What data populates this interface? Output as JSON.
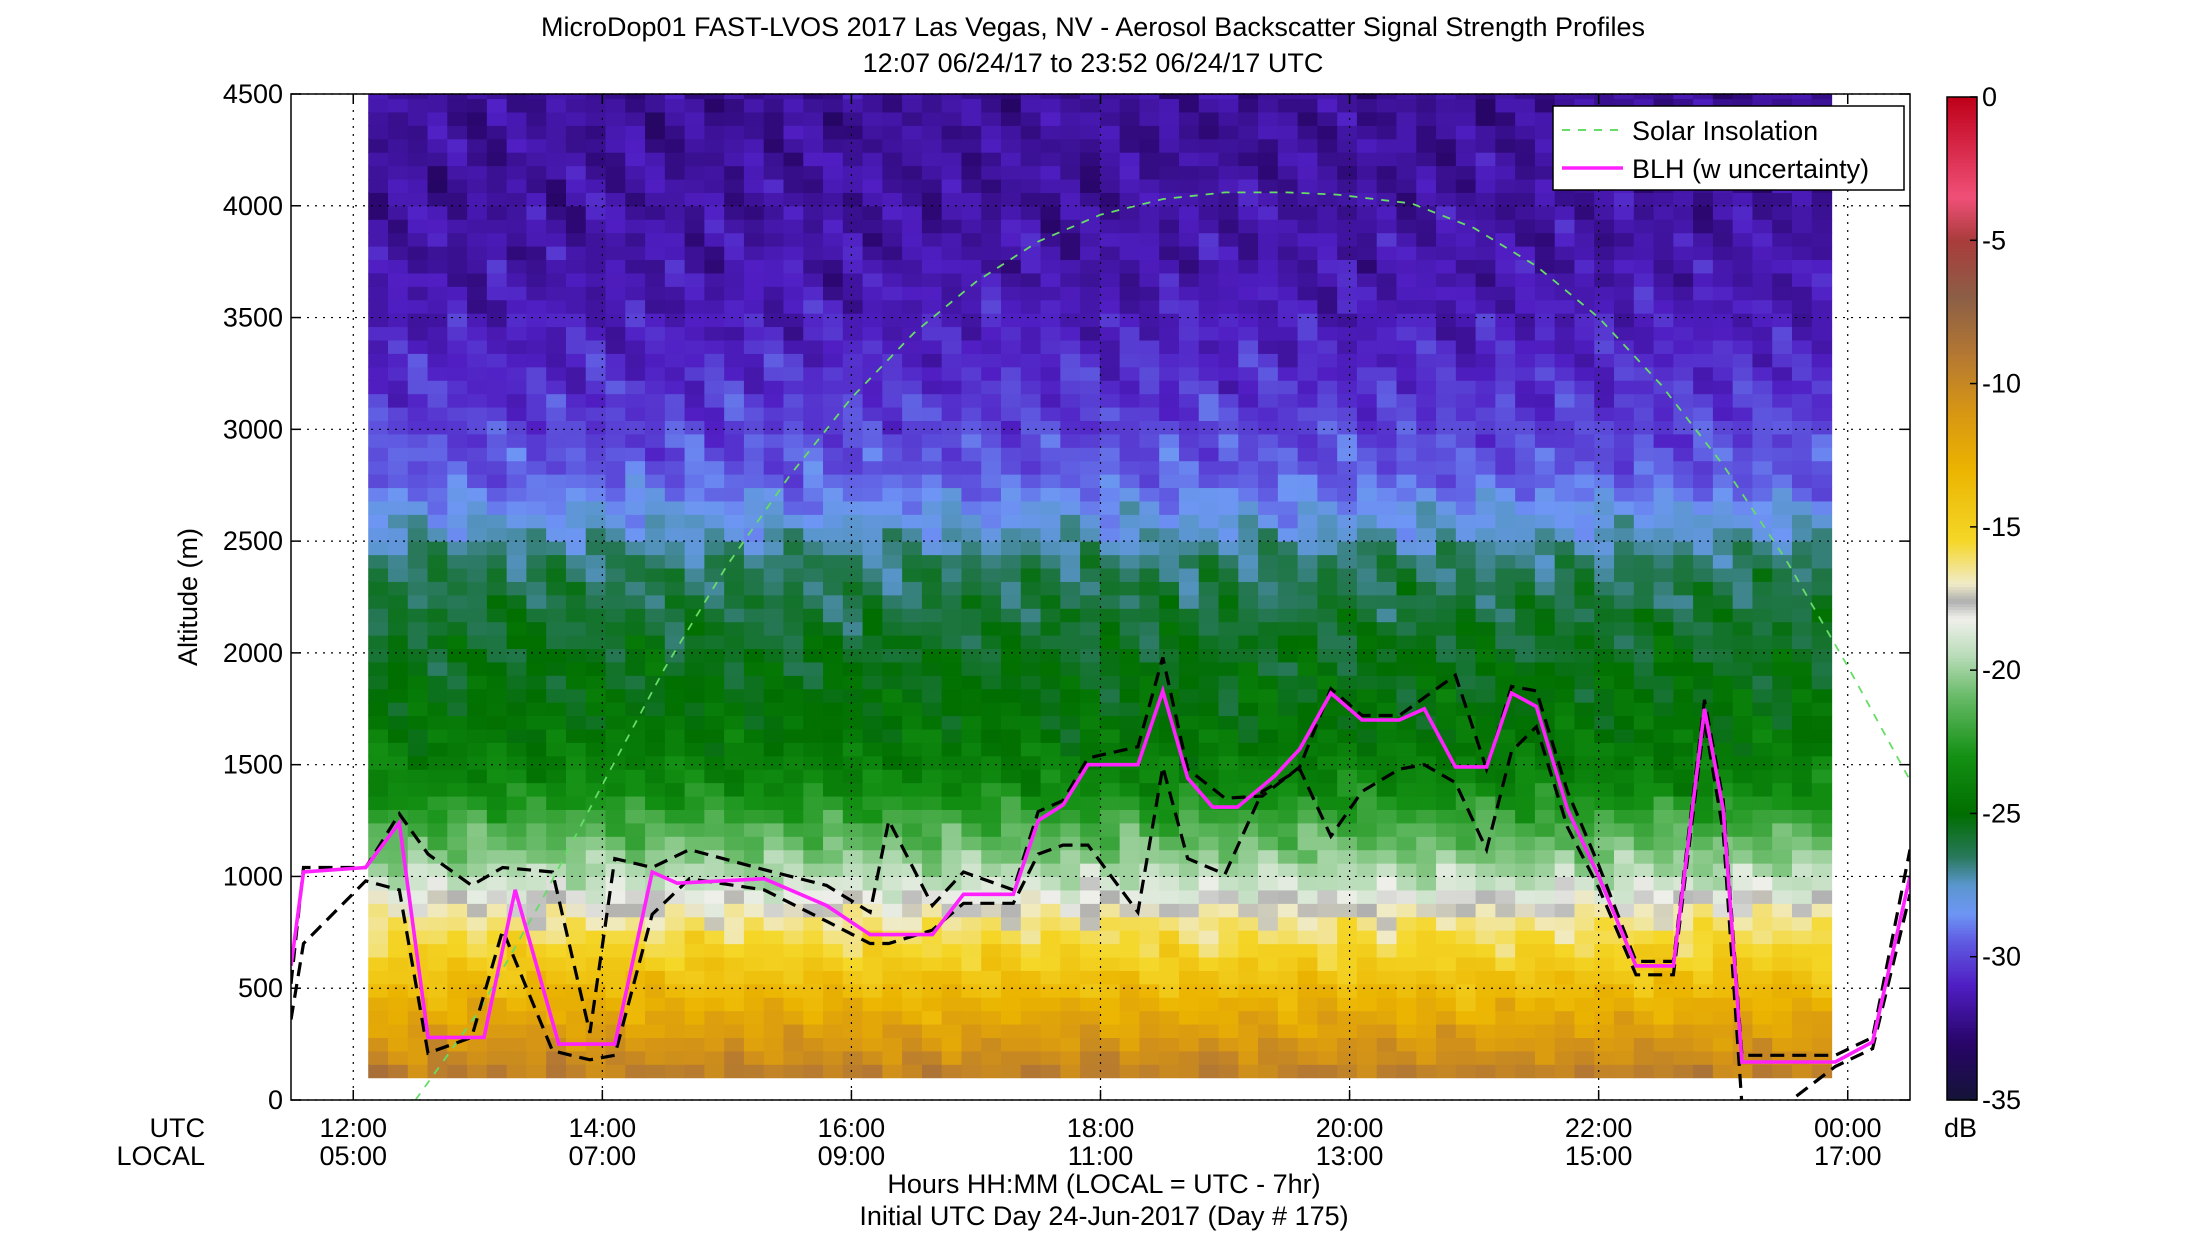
{
  "chart_data": {
    "type": "heatmap",
    "title": "MicroDop01 FAST-LVOS 2017 Las Vegas, NV - Aerosol Backscatter Signal Strength Profiles",
    "subtitle": "12:07 06/24/17 to 23:52 06/24/17  UTC",
    "ylabel": "Altitude (m)",
    "xlabel": "Hours HH:MM  (LOCAL = UTC - 7hr)",
    "xlabel2": "Initial UTC Day 24-Jun-2017 (Day # 175)",
    "row_label_utc": "UTC",
    "row_label_local": "LOCAL",
    "xlim_hours": [
      11.5,
      24.5
    ],
    "ylim": [
      0,
      4500
    ],
    "grid": true,
    "x_ticks": [
      {
        "hour": 12,
        "utc": "12:00",
        "local": "05:00"
      },
      {
        "hour": 14,
        "utc": "14:00",
        "local": "07:00"
      },
      {
        "hour": 16,
        "utc": "16:00",
        "local": "09:00"
      },
      {
        "hour": 18,
        "utc": "18:00",
        "local": "11:00"
      },
      {
        "hour": 20,
        "utc": "20:00",
        "local": "13:00"
      },
      {
        "hour": 22,
        "utc": "22:00",
        "local": "15:00"
      },
      {
        "hour": 24,
        "utc": "00:00",
        "local": "17:00"
      }
    ],
    "y_ticks": [
      0,
      500,
      1000,
      1500,
      2000,
      2500,
      3000,
      3500,
      4000,
      4500
    ],
    "colorbar": {
      "label": "dB",
      "range": [
        -35,
        0
      ],
      "ticks": [
        0,
        -5,
        -10,
        -15,
        -20,
        -25,
        -30,
        -35
      ]
    },
    "legend": {
      "placement": "top-right",
      "entries": [
        {
          "label": "Solar Insolation",
          "color": "#66dd66",
          "style": "dashed"
        },
        {
          "label": "BLH (w uncertainty)",
          "color": "#ff22ff",
          "style": "solid"
        }
      ]
    },
    "data_time_range_hours": [
      12.12,
      23.87
    ],
    "signal_profile_db": {
      "altitude_m": [
        120,
        200,
        300,
        400,
        500,
        600,
        700,
        800,
        900,
        1000,
        1100,
        1200,
        1300,
        1400,
        1600,
        1800,
        2000,
        2200,
        2400,
        2600,
        2800,
        3000,
        3200,
        3400,
        3700,
        4000,
        4500
      ],
      "signal_db": [
        -9.5,
        -10.5,
        -11.5,
        -12.5,
        -13.5,
        -14.5,
        -15.5,
        -16.5,
        -18,
        -19.5,
        -20.5,
        -21.5,
        -22.5,
        -23.5,
        -24.5,
        -25,
        -25.5,
        -26,
        -26.5,
        -28,
        -29.5,
        -30,
        -30.5,
        -31,
        -31.5,
        -31.8,
        -32
      ]
    },
    "series": [
      {
        "name": "BLH (w uncertainty)",
        "x": [
          11.5,
          11.6,
          12.1,
          12.37,
          12.6,
          13.05,
          13.3,
          13.65,
          14.1,
          14.4,
          14.6,
          15.3,
          15.8,
          16.15,
          16.65,
          16.9,
          17.3,
          17.5,
          17.7,
          17.9,
          18.3,
          18.5,
          18.7,
          18.9,
          19.1,
          19.4,
          19.6,
          19.85,
          20.1,
          20.4,
          20.6,
          20.85,
          21.1,
          21.3,
          21.5,
          21.75,
          22.0,
          22.3,
          22.6,
          22.85,
          23.0,
          23.15,
          23.5,
          23.9,
          24.2,
          24.5
        ],
        "y": [
          600,
          1020,
          1040,
          1240,
          280,
          280,
          940,
          250,
          250,
          1020,
          970,
          990,
          870,
          740,
          740,
          920,
          920,
          1250,
          1320,
          1500,
          1500,
          1830,
          1440,
          1310,
          1310,
          1450,
          1570,
          1820,
          1700,
          1700,
          1750,
          1490,
          1490,
          1820,
          1760,
          1300,
          1000,
          600,
          600,
          1750,
          1300,
          170,
          170,
          170,
          260,
          1000
        ]
      },
      {
        "name": "BLH upper uncertainty",
        "x": [
          11.5,
          11.6,
          12.1,
          12.37,
          12.6,
          12.95,
          13.2,
          13.6,
          13.9,
          14.1,
          14.4,
          14.7,
          15.3,
          15.8,
          16.15,
          16.3,
          16.65,
          16.9,
          17.3,
          17.5,
          17.7,
          17.9,
          18.3,
          18.5,
          18.7,
          19.0,
          19.3,
          19.6,
          19.85,
          20.1,
          20.4,
          20.6,
          20.85,
          21.1,
          21.3,
          21.5,
          21.75,
          22.0,
          22.3,
          22.6,
          22.85,
          23.0,
          23.15,
          23.5,
          23.9,
          24.2,
          24.5
        ],
        "y": [
          520,
          1040,
          1040,
          1280,
          1100,
          960,
          1040,
          1020,
          300,
          1080,
          1040,
          1120,
          1030,
          960,
          840,
          1250,
          870,
          1020,
          940,
          1290,
          1340,
          1530,
          1580,
          1980,
          1480,
          1350,
          1360,
          1490,
          1840,
          1720,
          1720,
          1800,
          1900,
          1480,
          1850,
          1830,
          1380,
          1050,
          620,
          620,
          1790,
          1340,
          200,
          200,
          200,
          280,
          1120
        ]
      },
      {
        "name": "BLH lower uncertainty",
        "x": [
          11.5,
          11.6,
          12.1,
          12.37,
          12.6,
          12.95,
          13.2,
          13.6,
          13.9,
          14.1,
          14.4,
          14.7,
          15.3,
          15.8,
          16.15,
          16.3,
          16.65,
          16.9,
          17.3,
          17.5,
          17.7,
          17.9,
          18.3,
          18.5,
          18.7,
          19.0,
          19.3,
          19.6,
          19.85,
          20.1,
          20.4,
          20.6,
          20.85,
          21.1,
          21.3,
          21.5,
          21.75,
          22.0,
          22.3,
          22.6,
          22.85,
          23.0,
          23.15,
          23.5,
          23.9,
          24.2,
          24.5
        ],
        "y": [
          360,
          700,
          980,
          940,
          210,
          280,
          760,
          220,
          180,
          200,
          830,
          990,
          940,
          800,
          700,
          700,
          760,
          880,
          880,
          1100,
          1140,
          1140,
          840,
          1490,
          1080,
          1010,
          1380,
          1480,
          1180,
          1380,
          1480,
          1500,
          1420,
          1120,
          1560,
          1670,
          1220,
          950,
          560,
          560,
          1700,
          1200,
          -20,
          -20,
          150,
          230,
          920
        ]
      },
      {
        "name": "Solar Insolation",
        "x": [
          12.5,
          13.0,
          13.5,
          14.0,
          14.5,
          15.0,
          15.5,
          16.0,
          16.5,
          17.0,
          17.5,
          18.0,
          18.5,
          19.0,
          19.5,
          19.9,
          20.5,
          21.0,
          21.5,
          22.0,
          22.5,
          23.0,
          23.5,
          24.0,
          24.5
        ],
        "y": [
          0,
          390,
          880,
          1410,
          1930,
          2390,
          2790,
          3140,
          3430,
          3660,
          3840,
          3960,
          4030,
          4060,
          4060,
          4050,
          4010,
          3900,
          3730,
          3500,
          3200,
          2840,
          2420,
          1940,
          1430
        ]
      }
    ]
  }
}
